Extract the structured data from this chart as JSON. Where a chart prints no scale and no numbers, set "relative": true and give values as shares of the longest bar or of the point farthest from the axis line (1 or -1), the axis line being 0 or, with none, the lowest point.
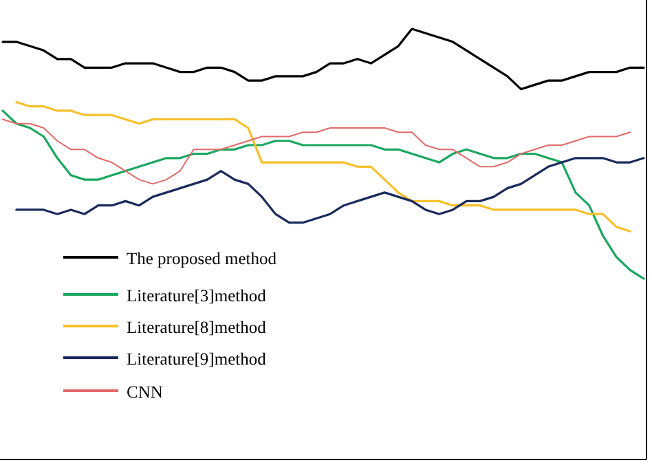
{
  "chart_data": {
    "type": "line",
    "relative": true,
    "legend": "bottom left",
    "categories": [
      null,
      null,
      null,
      null,
      null,
      null,
      null,
      null,
      null,
      null,
      null,
      null,
      null,
      null,
      null,
      null,
      null,
      null,
      null,
      null,
      null,
      null,
      null,
      null,
      null,
      null,
      null,
      null,
      null,
      null,
      null,
      null,
      null,
      null,
      null,
      null,
      null,
      null,
      null,
      null,
      null,
      null,
      null,
      null,
      null,
      null,
      null,
      null
    ],
    "series": [
      {
        "name": "The proposed method",
        "color": "#000000",
        "values": [
          0.97,
          0.97,
          0.96,
          0.95,
          0.93,
          0.93,
          0.91,
          0.91,
          0.91,
          0.92,
          0.92,
          0.92,
          0.91,
          0.9,
          0.9,
          0.91,
          0.91,
          0.9,
          0.88,
          0.88,
          0.89,
          0.89,
          0.89,
          0.9,
          0.92,
          0.92,
          0.93,
          0.92,
          0.94,
          0.96,
          1.0,
          0.99,
          0.98,
          0.97,
          0.95,
          0.93,
          0.91,
          0.89,
          0.86,
          0.87,
          0.88,
          0.88,
          0.89,
          0.9,
          0.9,
          0.9,
          0.91,
          0.91
        ]
      },
      {
        "name": "Literature[3]method",
        "color": "#1aa760",
        "values": [
          0.81,
          0.78,
          0.77,
          0.75,
          0.7,
          0.66,
          0.65,
          0.65,
          0.66,
          0.67,
          0.68,
          0.69,
          0.7,
          0.7,
          0.71,
          0.71,
          0.72,
          0.72,
          0.73,
          0.73,
          0.74,
          0.74,
          0.73,
          0.73,
          0.73,
          0.73,
          0.73,
          0.73,
          0.72,
          0.72,
          0.71,
          0.7,
          0.69,
          0.71,
          0.72,
          0.71,
          0.7,
          0.7,
          0.71,
          0.71,
          0.7,
          0.69,
          0.62,
          0.59,
          0.52,
          0.47,
          0.44,
          0.42
        ]
      },
      {
        "name": "Literature[8]method",
        "color": "#f5c02a",
        "values": [
          null,
          0.83,
          0.82,
          0.82,
          0.81,
          0.81,
          0.8,
          0.8,
          0.8,
          0.79,
          0.78,
          0.79,
          0.79,
          0.79,
          0.79,
          0.79,
          0.79,
          0.79,
          0.77,
          0.69,
          0.69,
          0.69,
          0.69,
          0.69,
          0.69,
          0.69,
          0.68,
          0.68,
          0.65,
          0.62,
          0.6,
          0.6,
          0.6,
          0.59,
          0.59,
          0.59,
          0.58,
          0.58,
          0.58,
          0.58,
          0.58,
          0.58,
          0.58,
          0.57,
          0.57,
          0.54,
          0.53,
          null
        ]
      },
      {
        "name": "Literature[9]method",
        "color": "#1b2a5c",
        "values": [
          null,
          0.58,
          0.58,
          0.58,
          0.57,
          0.58,
          0.57,
          0.59,
          0.59,
          0.6,
          0.59,
          0.61,
          0.62,
          0.63,
          0.64,
          0.65,
          0.67,
          0.65,
          0.64,
          0.61,
          0.57,
          0.55,
          0.55,
          0.56,
          0.57,
          0.59,
          0.6,
          0.61,
          0.62,
          0.61,
          0.6,
          0.58,
          0.57,
          0.58,
          0.6,
          0.6,
          0.61,
          0.63,
          0.64,
          0.66,
          0.68,
          0.69,
          0.7,
          0.7,
          0.7,
          0.69,
          0.69,
          0.7
        ]
      },
      {
        "name": "CNN",
        "color": "#e06a6a",
        "values": [
          0.79,
          0.78,
          0.78,
          0.77,
          0.74,
          0.72,
          0.72,
          0.7,
          0.69,
          0.67,
          0.65,
          0.64,
          0.65,
          0.67,
          0.72,
          0.72,
          0.72,
          0.73,
          0.74,
          0.75,
          0.75,
          0.75,
          0.76,
          0.76,
          0.77,
          0.77,
          0.77,
          0.77,
          0.77,
          0.76,
          0.76,
          0.73,
          0.72,
          0.72,
          0.7,
          0.68,
          0.68,
          0.69,
          0.71,
          0.72,
          0.73,
          0.73,
          0.74,
          0.75,
          0.75,
          0.75,
          0.76,
          null
        ]
      }
    ]
  }
}
